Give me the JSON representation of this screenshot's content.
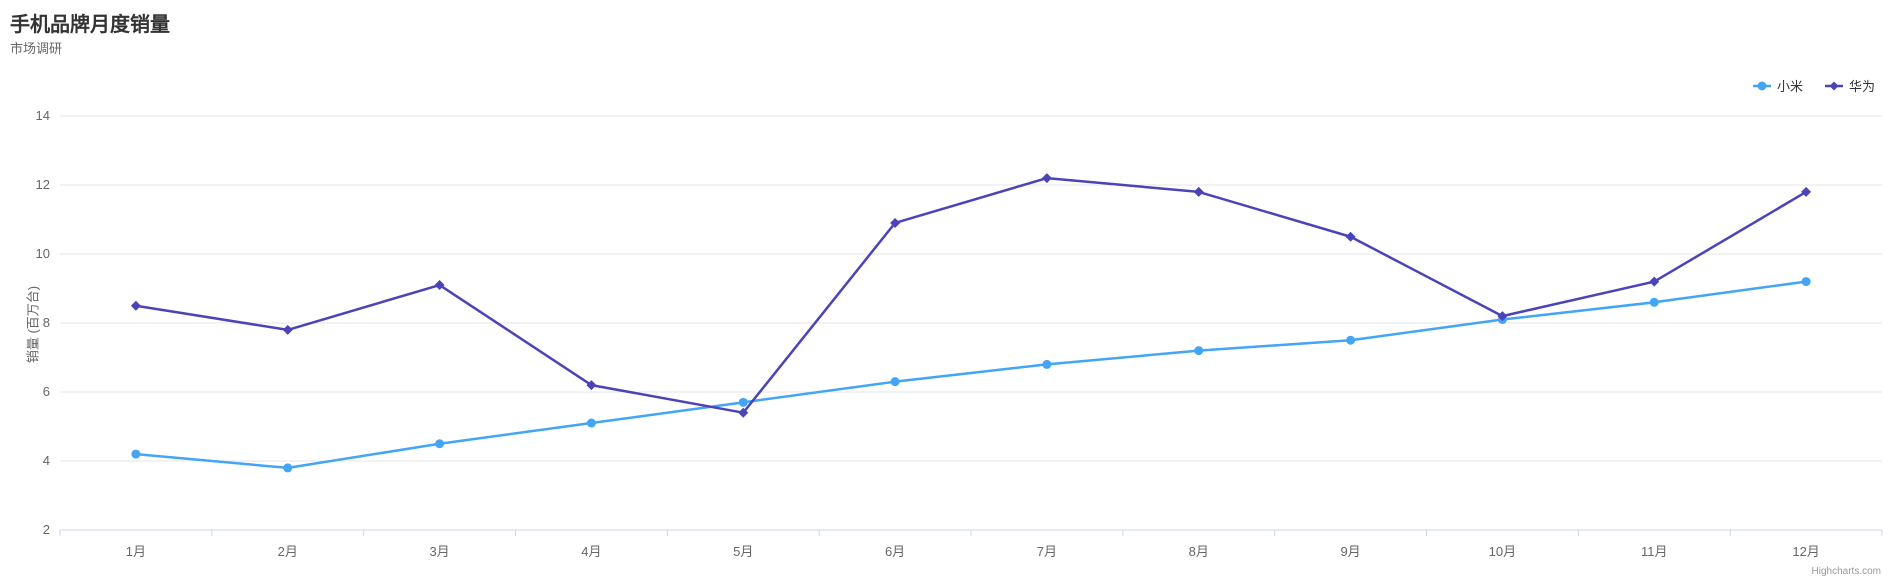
{
  "chart_data": {
    "type": "line",
    "title": "手机品牌月度销量",
    "subtitle": "市场调研",
    "ylabel": "销量 (百万台)",
    "xlabel": "",
    "categories": [
      "1月",
      "2月",
      "3月",
      "4月",
      "5月",
      "6月",
      "7月",
      "8月",
      "9月",
      "10月",
      "11月",
      "12月"
    ],
    "series": [
      {
        "name": "小米",
        "color": "#42A5F5",
        "marker": "circle",
        "values": [
          4.2,
          3.8,
          4.5,
          5.1,
          5.7,
          6.3,
          6.8,
          7.2,
          7.5,
          8.1,
          8.6,
          9.2
        ]
      },
      {
        "name": "华为",
        "color": "#4B44B8",
        "marker": "diamond",
        "values": [
          8.5,
          7.8,
          9.1,
          6.2,
          5.4,
          10.9,
          12.2,
          11.8,
          10.5,
          8.2,
          9.2,
          11.8
        ]
      }
    ],
    "yticks": [
      2,
      4,
      6,
      8,
      10,
      12,
      14
    ],
    "ylim": [
      2,
      14
    ],
    "grid": true,
    "legend_position": "top-right",
    "credit": "Highcharts.com"
  }
}
